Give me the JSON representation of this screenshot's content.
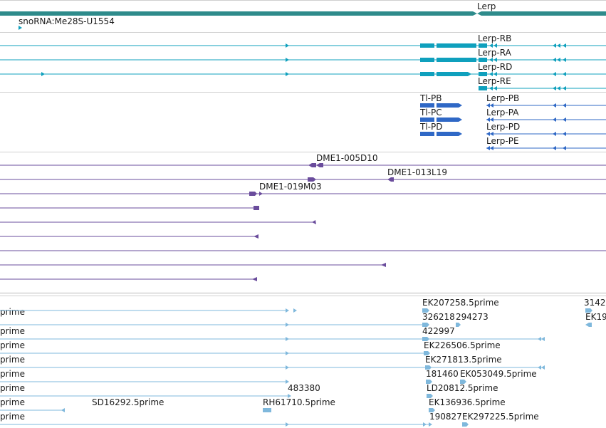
{
  "colors": {
    "gene": "#2e8b8b",
    "transcript": "#0fa0bd",
    "protein": "#2f68c6",
    "clone": "#6a4c9c",
    "est": "#7fb8dc",
    "separator": "#d0d0d0",
    "label": "#1a1a1a"
  },
  "tracks": {
    "genes": {
      "label": "Lerp",
      "snorna_label": "snoRNA:Me28S-U1554"
    },
    "transcripts": {
      "labels": [
        "Lerp-RB",
        "Lerp-RA",
        "Lerp-RD",
        "Lerp-RE"
      ]
    },
    "proteins": {
      "left_labels": [
        "Tl-PB",
        "Tl-PC",
        "Tl-PD"
      ],
      "right_labels": [
        "Lerp-PB",
        "Lerp-PA",
        "Lerp-PD",
        "Lerp-PE"
      ]
    },
    "clones": {
      "labels": [
        "DME1-005D10",
        "DME1-013L19",
        "DME1-019M03"
      ]
    },
    "ests": {
      "row_prefix": "prime",
      "labels": {
        "ek207258": "EK207258.5prime",
        "r326218": "326218",
        "r294273": "294273",
        "r3142": "3142",
        "ek19": "EK19",
        "r422997": "422997",
        "ek226506": "EK226506.5prime",
        "ek271813": "EK271813.5prime",
        "r181460": "181460",
        "ek053049": "EK053049.5prime",
        "r483380": "483380",
        "ld20812": "LD20812.5prime",
        "sd16292": "SD16292.5prime",
        "rh61710": "RH61710.5prime",
        "ek136936": "EK136936.5prime",
        "r190827": "190827",
        "ek297225": "EK297225.5prime"
      }
    }
  }
}
